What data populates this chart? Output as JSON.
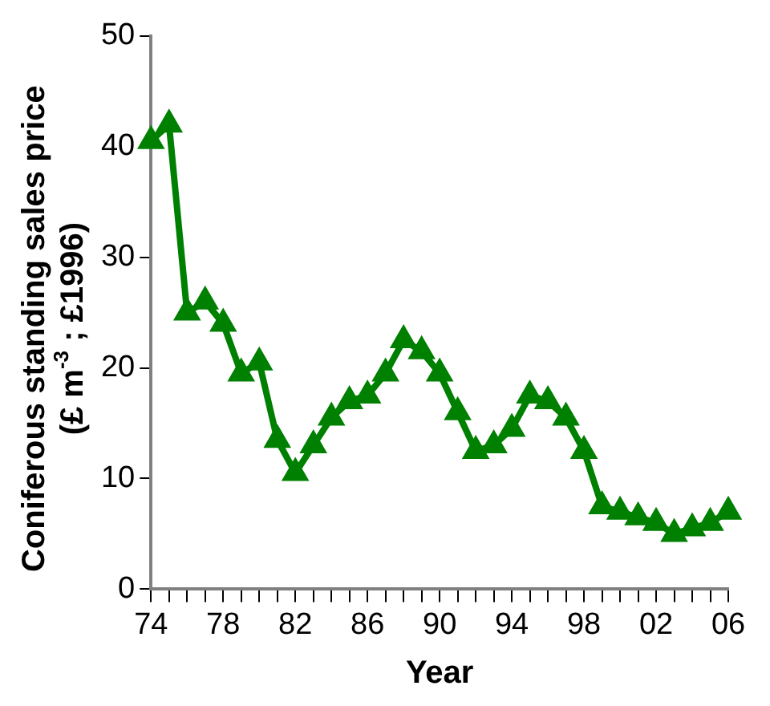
{
  "chart_data": {
    "type": "line",
    "xlabel": "Year",
    "ylabel": "Coniferous standing sales price (£ m$^{-3}$ ; £1996)",
    "x": [
      1974,
      1975,
      1976,
      1977,
      1978,
      1979,
      1980,
      1981,
      1982,
      1983,
      1984,
      1985,
      1986,
      1987,
      1988,
      1989,
      1990,
      1991,
      1992,
      1993,
      1994,
      1995,
      1996,
      1997,
      1998,
      1999,
      2000,
      2001,
      2002,
      2003,
      2004,
      2005,
      2006
    ],
    "series": [
      {
        "color": "#008000",
        "values": [
          40.5,
          42,
          25,
          26,
          24,
          19.5,
          20.5,
          13.5,
          10.5,
          13,
          15.5,
          17,
          17.5,
          19.5,
          22.5,
          21.5,
          19.5,
          16,
          12.5,
          13,
          14.5,
          17.5,
          17,
          15.5,
          12.5,
          7.5,
          7,
          6.5,
          6,
          5,
          5.5,
          6,
          7
        ]
      }
    ],
    "xlim": [
      1974,
      2006
    ],
    "xticks": [
      {
        "value": 1974,
        "label": "74"
      },
      {
        "value": 1975,
        "label": null
      },
      {
        "value": 1976,
        "label": null
      },
      {
        "value": 1977,
        "label": null
      },
      {
        "value": 1978,
        "label": "78"
      },
      {
        "value": 1979,
        "label": null
      },
      {
        "value": 1980,
        "label": null
      },
      {
        "value": 1981,
        "label": null
      },
      {
        "value": 1982,
        "label": "82"
      },
      {
        "value": 1983,
        "label": null
      },
      {
        "value": 1984,
        "label": null
      },
      {
        "value": 1985,
        "label": null
      },
      {
        "value": 1986,
        "label": "86"
      },
      {
        "value": 1987,
        "label": null
      },
      {
        "value": 1988,
        "label": null
      },
      {
        "value": 1989,
        "label": null
      },
      {
        "value": 1990,
        "label": "90"
      },
      {
        "value": 1991,
        "label": null
      },
      {
        "value": 1992,
        "label": null
      },
      {
        "value": 1993,
        "label": null
      },
      {
        "value": 1994,
        "label": "94"
      },
      {
        "value": 1995,
        "label": null
      },
      {
        "value": 1996,
        "label": null
      },
      {
        "value": 1997,
        "label": null
      },
      {
        "value": 1998,
        "label": "98"
      },
      {
        "value": 1999,
        "label": null
      },
      {
        "value": 2000,
        "label": null
      },
      {
        "value": 2001,
        "label": null
      },
      {
        "value": 2002,
        "label": "02"
      },
      {
        "value": 2003,
        "label": null
      },
      {
        "value": 2004,
        "label": null
      },
      {
        "value": 2005,
        "label": null
      },
      {
        "value": 2006,
        "label": "06"
      }
    ],
    "ylim": [
      0,
      50
    ],
    "yticks": [
      0,
      10,
      20,
      30,
      40,
      50
    ],
    "grid": false,
    "legend": false,
    "marker": "triangle",
    "line_style": "solid"
  }
}
